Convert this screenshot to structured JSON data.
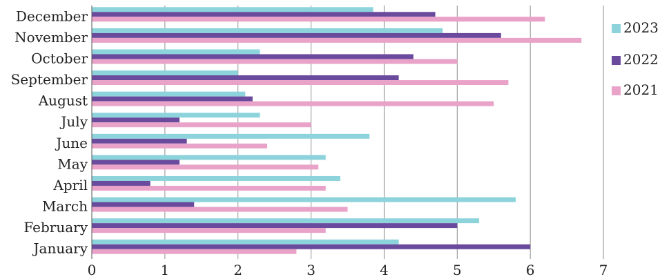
{
  "chart_data": {
    "type": "bar",
    "orientation": "horizontal",
    "categories": [
      "January",
      "February",
      "March",
      "April",
      "May",
      "June",
      "July",
      "August",
      "September",
      "October",
      "November",
      "December"
    ],
    "series": [
      {
        "name": "2023",
        "color": "#8dd3dc",
        "values": [
          4.2,
          5.3,
          5.8,
          3.4,
          3.2,
          3.8,
          2.3,
          2.1,
          2.0,
          2.3,
          4.8,
          3.85
        ]
      },
      {
        "name": "2022",
        "color": "#6a4a9c",
        "values": [
          6.0,
          5.0,
          1.4,
          0.8,
          1.2,
          1.3,
          1.2,
          2.2,
          4.2,
          4.4,
          5.6,
          4.7
        ]
      },
      {
        "name": "2021",
        "color": "#e9a3c9",
        "values": [
          2.8,
          3.2,
          3.5,
          3.2,
          3.1,
          2.4,
          3.0,
          5.5,
          5.7,
          5.0,
          6.7,
          6.2
        ]
      }
    ],
    "xlim": [
      0,
      7
    ],
    "xticks": [
      "0",
      "1",
      "2",
      "3",
      "4",
      "5",
      "6",
      "7"
    ],
    "grid": "vertical",
    "legend_position": "right",
    "title": "",
    "xlabel": "",
    "ylabel": ""
  }
}
